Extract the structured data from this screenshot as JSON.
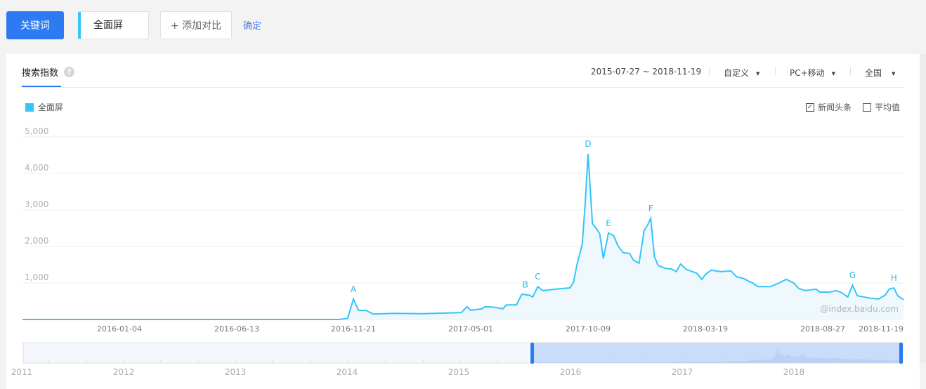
{
  "toolbar": {
    "keyword_label": "关键词",
    "keyword_value": "全面屏",
    "add_compare_label": "+ 添加对比",
    "confirm_label": "确定"
  },
  "panel": {
    "tab": "搜索指数",
    "help_icon": "question-circle-icon",
    "date_range": "2015-07-27 ~ 2018-11-19",
    "period_select": "自定义",
    "device_select": "PC+移动",
    "region_select": "全国",
    "legend_label": "全面屏",
    "news_checkbox": {
      "label": "新闻头条",
      "checked": true
    },
    "average_checkbox": {
      "label": "平均值",
      "checked": false
    },
    "watermark": "@index.baidu.com"
  },
  "colors": {
    "primary": "#2d7af2",
    "series": "#35c5f8",
    "link": "#4a7cf2"
  },
  "chart_data": {
    "type": "area",
    "series": [
      {
        "name": "全面屏",
        "points": [
          [
            "2015-07-27",
            0
          ],
          [
            "2016-11-01",
            0
          ],
          [
            "2016-11-13",
            30
          ],
          [
            "2016-11-21",
            560
          ],
          [
            "2016-11-28",
            250
          ],
          [
            "2016-12-08",
            250
          ],
          [
            "2016-12-18",
            150
          ],
          [
            "2017-01-16",
            170
          ],
          [
            "2017-02-24",
            160
          ],
          [
            "2017-04-04",
            180
          ],
          [
            "2017-04-18",
            190
          ],
          [
            "2017-04-26",
            350
          ],
          [
            "2017-05-01",
            250
          ],
          [
            "2017-05-16",
            290
          ],
          [
            "2017-05-21",
            350
          ],
          [
            "2017-06-04",
            330
          ],
          [
            "2017-06-14",
            290
          ],
          [
            "2017-06-19",
            400
          ],
          [
            "2017-07-03",
            400
          ],
          [
            "2017-07-10",
            690
          ],
          [
            "2017-07-20",
            670
          ],
          [
            "2017-07-25",
            615
          ],
          [
            "2017-08-01",
            900
          ],
          [
            "2017-08-08",
            790
          ],
          [
            "2017-08-26",
            830
          ],
          [
            "2017-09-14",
            865
          ],
          [
            "2017-09-19",
            1020
          ],
          [
            "2017-09-24",
            1520
          ],
          [
            "2017-10-01",
            2060
          ],
          [
            "2017-10-05",
            3170
          ],
          [
            "2017-10-09",
            4540
          ],
          [
            "2017-10-15",
            2630
          ],
          [
            "2017-10-20",
            2500
          ],
          [
            "2017-10-25",
            2350
          ],
          [
            "2017-10-30",
            1670
          ],
          [
            "2017-11-06",
            2370
          ],
          [
            "2017-11-13",
            2300
          ],
          [
            "2017-11-19",
            2020
          ],
          [
            "2017-11-26",
            1830
          ],
          [
            "2017-12-05",
            1810
          ],
          [
            "2017-12-10",
            1630
          ],
          [
            "2017-12-18",
            1540
          ],
          [
            "2017-12-25",
            2440
          ],
          [
            "2017-12-30",
            2600
          ],
          [
            "2018-01-03",
            2770
          ],
          [
            "2018-01-08",
            1730
          ],
          [
            "2018-01-13",
            1480
          ],
          [
            "2018-01-23",
            1400
          ],
          [
            "2018-02-01",
            1380
          ],
          [
            "2018-02-07",
            1310
          ],
          [
            "2018-02-13",
            1520
          ],
          [
            "2018-02-21",
            1370
          ],
          [
            "2018-03-07",
            1270
          ],
          [
            "2018-03-14",
            1100
          ],
          [
            "2018-03-20",
            1250
          ],
          [
            "2018-03-27",
            1350
          ],
          [
            "2018-04-09",
            1310
          ],
          [
            "2018-04-23",
            1330
          ],
          [
            "2018-05-01",
            1170
          ],
          [
            "2018-05-11",
            1120
          ],
          [
            "2018-05-18",
            1040
          ],
          [
            "2018-05-23",
            1000
          ],
          [
            "2018-05-30",
            900
          ],
          [
            "2018-06-16",
            900
          ],
          [
            "2018-06-26",
            980
          ],
          [
            "2018-07-08",
            1100
          ],
          [
            "2018-07-18",
            1000
          ],
          [
            "2018-07-25",
            850
          ],
          [
            "2018-08-03",
            790
          ],
          [
            "2018-08-18",
            830
          ],
          [
            "2018-08-23",
            750
          ],
          [
            "2018-09-03",
            750
          ],
          [
            "2018-09-10",
            790
          ],
          [
            "2018-09-16",
            730
          ],
          [
            "2018-09-22",
            615
          ],
          [
            "2018-09-27",
            940
          ],
          [
            "2018-10-02",
            650
          ],
          [
            "2018-10-16",
            580
          ],
          [
            "2018-10-24",
            560
          ],
          [
            "2018-10-31",
            670
          ],
          [
            "2018-11-04",
            830
          ],
          [
            "2018-11-09",
            865
          ],
          [
            "2018-11-13",
            650
          ],
          [
            "2018-11-19",
            540
          ]
        ]
      }
    ],
    "annotations": [
      {
        "label": "A",
        "date": "2016-11-21"
      },
      {
        "label": "B",
        "date": "2017-07-15"
      },
      {
        "label": "C",
        "date": "2017-08-01"
      },
      {
        "label": "D",
        "date": "2017-10-09"
      },
      {
        "label": "E",
        "date": "2017-11-06"
      },
      {
        "label": "F",
        "date": "2018-01-03"
      },
      {
        "label": "G",
        "date": "2018-09-27"
      },
      {
        "label": "H",
        "date": "2018-11-09"
      }
    ],
    "x_ticks": [
      "2016-01-04",
      "2016-06-13",
      "2016-11-21",
      "2017-05-01",
      "2017-10-09",
      "2018-03-19",
      "2018-08-27",
      "2018-11-19"
    ],
    "y_ticks": [
      "1,000",
      "2,000",
      "3,000",
      "4,000",
      "5,000"
    ],
    "ylim": [
      0,
      5000
    ],
    "grid": true,
    "navigator": {
      "years": [
        "2011",
        "2012",
        "2013",
        "2014",
        "2015",
        "2016",
        "2017",
        "2018"
      ],
      "selected": [
        "2015-07-27",
        "2018-11-19"
      ]
    }
  }
}
